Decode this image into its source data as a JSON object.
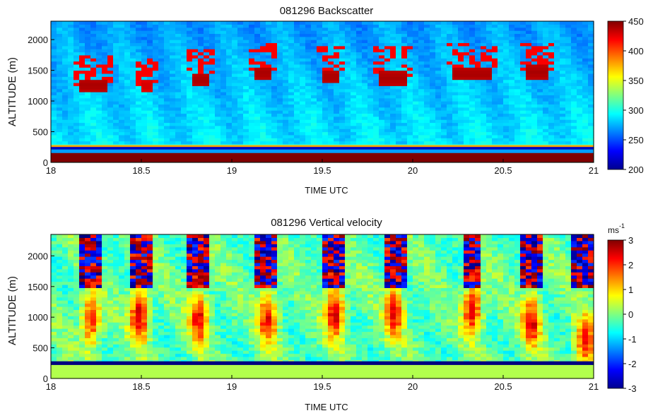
{
  "chart_data": [
    {
      "type": "heatmap",
      "title": "081296  Backscatter",
      "xlabel": "TIME UTC",
      "ylabel": "ALTITUDE (m)",
      "xlim": [
        18,
        21
      ],
      "ylim": [
        0,
        2300
      ],
      "xticks": [
        "18",
        "18.5",
        "19",
        "19.5",
        "20",
        "20.5",
        "21"
      ],
      "xtick_values": [
        18,
        18.5,
        19,
        19.5,
        20,
        20.5,
        21
      ],
      "yticks": [
        "0",
        "500",
        "1000",
        "1500",
        "2000"
      ],
      "ytick_values": [
        0,
        500,
        1000,
        1500,
        2000
      ],
      "colorbar": {
        "label": "",
        "min": 200,
        "max": 450,
        "ticks": [
          "200",
          "250",
          "300",
          "350",
          "400",
          "450"
        ],
        "tick_values": [
          200,
          250,
          300,
          350,
          400,
          450
        ]
      },
      "colormap": "jet",
      "features": {
        "cloud_base_layers": [
          {
            "t_start": 18.18,
            "t_end": 18.3,
            "altitude": 1260,
            "value": 440
          },
          {
            "t_start": 18.5,
            "t_end": 18.55,
            "altitude": 1250,
            "value": 430
          },
          {
            "t_start": 18.78,
            "t_end": 18.87,
            "altitude": 1340,
            "value": 440
          },
          {
            "t_start": 19.13,
            "t_end": 19.22,
            "altitude": 1460,
            "value": 440
          },
          {
            "t_start": 19.52,
            "t_end": 19.58,
            "altitude": 1400,
            "value": 440
          },
          {
            "t_start": 19.82,
            "t_end": 19.97,
            "altitude": 1380,
            "value": 440
          },
          {
            "t_start": 20.22,
            "t_end": 20.42,
            "altitude": 1440,
            "value": 440
          },
          {
            "t_start": 20.63,
            "t_end": 20.75,
            "altitude": 1470,
            "value": 440
          }
        ],
        "surface_layer_top": 280,
        "surface_value": 450
      }
    },
    {
      "type": "heatmap",
      "title": "081296  Vertical velocity",
      "xlabel": "TIME UTC",
      "ylabel": "ALTITUDE (m)",
      "xlim": [
        18,
        21
      ],
      "ylim": [
        0,
        2350
      ],
      "xticks": [
        "18",
        "18.5",
        "19",
        "19.5",
        "20",
        "20.5",
        "21"
      ],
      "xtick_values": [
        18,
        18.5,
        19,
        19.5,
        20,
        20.5,
        21
      ],
      "yticks": [
        "0",
        "500",
        "1000",
        "1500",
        "2000"
      ],
      "ytick_values": [
        0,
        500,
        1000,
        1500,
        2000
      ],
      "colorbar": {
        "label": "ms",
        "label_superscript": "-1",
        "min": -3,
        "max": 3,
        "ticks": [
          "-3",
          "-2",
          "-1",
          "0",
          "1",
          "2",
          "3"
        ],
        "tick_values": [
          -3,
          -2,
          -1,
          0,
          1,
          2,
          3
        ]
      },
      "colormap": "jet",
      "features": {
        "updrafts": [
          {
            "time": 18.22,
            "altitude": 950,
            "value": 2.5
          },
          {
            "time": 18.49,
            "altitude": 1050,
            "value": 3.0
          },
          {
            "time": 18.82,
            "altitude": 1000,
            "value": 2.5
          },
          {
            "time": 19.2,
            "altitude": 1000,
            "value": 2.5
          },
          {
            "time": 19.57,
            "altitude": 1100,
            "value": 2.8
          },
          {
            "time": 19.9,
            "altitude": 1100,
            "value": 2.5
          },
          {
            "time": 20.33,
            "altitude": 1150,
            "value": 2.8
          },
          {
            "time": 20.66,
            "altitude": 950,
            "value": 2.5
          },
          {
            "time": 20.95,
            "altitude": 600,
            "value": 2.5
          }
        ],
        "noisy_above_cloud_altitude": 1500,
        "low_layer_altitude": 280,
        "low_layer_value": -3
      }
    }
  ]
}
